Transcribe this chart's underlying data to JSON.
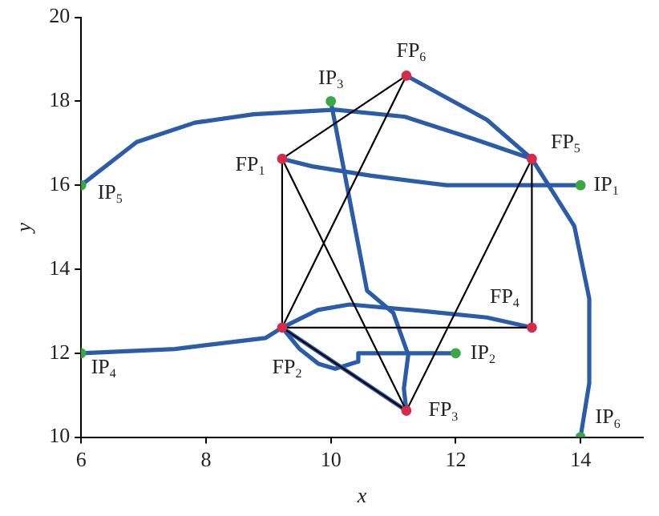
{
  "chart_data": {
    "type": "scatter",
    "xlabel": "x",
    "ylabel": "y",
    "xlim": [
      6,
      15
    ],
    "xticks": [
      6,
      8,
      10,
      12,
      14
    ],
    "ylim": [
      10,
      20
    ],
    "yticks": [
      10,
      12,
      14,
      16,
      18,
      20
    ],
    "grid": false,
    "legend": false,
    "series": [
      {
        "type": "line",
        "color": "#000000",
        "x": [
          9.22,
          9.22,
          13.22,
          13.22,
          11.21,
          9.22,
          11.21,
          9.22,
          11.21
        ],
        "values": [
          16.63,
          12.61,
          12.61,
          16.63,
          10.63,
          16.63,
          18.61,
          12.61,
          10.63
        ],
        "marker": "none"
      },
      {
        "type": "line",
        "color": "#2a5caa",
        "x": [
          14,
          11.85,
          10.63,
          9.7,
          9.22
        ],
        "values": [
          16,
          16,
          16.23,
          16.45,
          16.63
        ],
        "marker": "none"
      },
      {
        "type": "line",
        "color": "#2a5caa",
        "x": [
          12,
          10.44,
          10.44,
          10.07,
          9.8,
          9.5,
          9.22
        ],
        "values": [
          12,
          12,
          11.8,
          11.63,
          11.75,
          12.1,
          12.61
        ],
        "marker": "none"
      },
      {
        "type": "line",
        "color": "#2a5caa",
        "x": [
          10,
          10.58,
          11,
          11.24,
          11.17,
          11.21
        ],
        "values": [
          18,
          13.49,
          12.96,
          11.96,
          11.16,
          10.63
        ],
        "marker": "none"
      },
      {
        "type": "line",
        "color": "#2a5caa",
        "x": [
          6,
          7.5,
          8.95,
          9.22
        ],
        "values": [
          12,
          12.1,
          12.36,
          12.61
        ],
        "marker": "none"
      },
      {
        "type": "line",
        "color": "#2a5caa",
        "x": [
          9.22,
          9.79,
          10.3,
          11.5,
          12.5,
          13.22
        ],
        "values": [
          12.61,
          13.03,
          13.16,
          13.0,
          12.85,
          12.61
        ],
        "marker": "none"
      },
      {
        "type": "line",
        "color": "#2a5caa",
        "x": [
          9.22,
          11.21
        ],
        "values": [
          12.61,
          10.63
        ],
        "marker": "none"
      },
      {
        "type": "line",
        "color": "#2a5caa",
        "x": [
          6,
          6.89,
          7.82,
          8.76,
          10.07,
          11.19,
          12.31,
          13.22
        ],
        "values": [
          16,
          17.03,
          17.49,
          17.69,
          17.8,
          17.63,
          17.09,
          16.63
        ],
        "marker": "none"
      },
      {
        "type": "line",
        "color": "#2a5caa",
        "x": [
          14,
          14.14,
          14.14,
          13.9,
          13.22,
          12.5,
          11.21
        ],
        "values": [
          10,
          11.29,
          13.3,
          15.03,
          16.63,
          17.56,
          18.61
        ],
        "marker": "none"
      },
      {
        "color": "#d62b4b",
        "x": [
          9.22,
          9.22,
          11.21,
          13.22,
          13.22,
          11.21
        ],
        "values": [
          16.63,
          12.61,
          10.63,
          12.61,
          16.63,
          18.61
        ],
        "marker": "circle"
      },
      {
        "color": "#3aa845",
        "x": [
          14,
          12,
          10,
          6,
          6,
          14
        ],
        "values": [
          16,
          12,
          18,
          12,
          16,
          10
        ],
        "marker": "circle"
      }
    ],
    "annotations": [
      {
        "text": "FP$_{1}$",
        "x": 9.22,
        "y": 16.63
      },
      {
        "text": "FP$_{2}$",
        "x": 9.22,
        "y": 12.61
      },
      {
        "text": "FP$_{3}$",
        "x": 11.21,
        "y": 10.63
      },
      {
        "text": "FP$_{4}$",
        "x": 13.22,
        "y": 12.61
      },
      {
        "text": "FP$_{5}$",
        "x": 13.22,
        "y": 16.63
      },
      {
        "text": "FP$_{6}$",
        "x": 11.21,
        "y": 18.61
      },
      {
        "text": "IP$_{1}$",
        "x": 14,
        "y": 16
      },
      {
        "text": "IP$_{2}$",
        "x": 12,
        "y": 12
      },
      {
        "text": "IP$_{3}$",
        "x": 10,
        "y": 18
      },
      {
        "text": "IP$_{4}$",
        "x": 6,
        "y": 12
      },
      {
        "text": "IP$_{5}$",
        "x": 6,
        "y": 16
      },
      {
        "text": "IP$_{6}$",
        "x": 14,
        "y": 10
      }
    ]
  }
}
